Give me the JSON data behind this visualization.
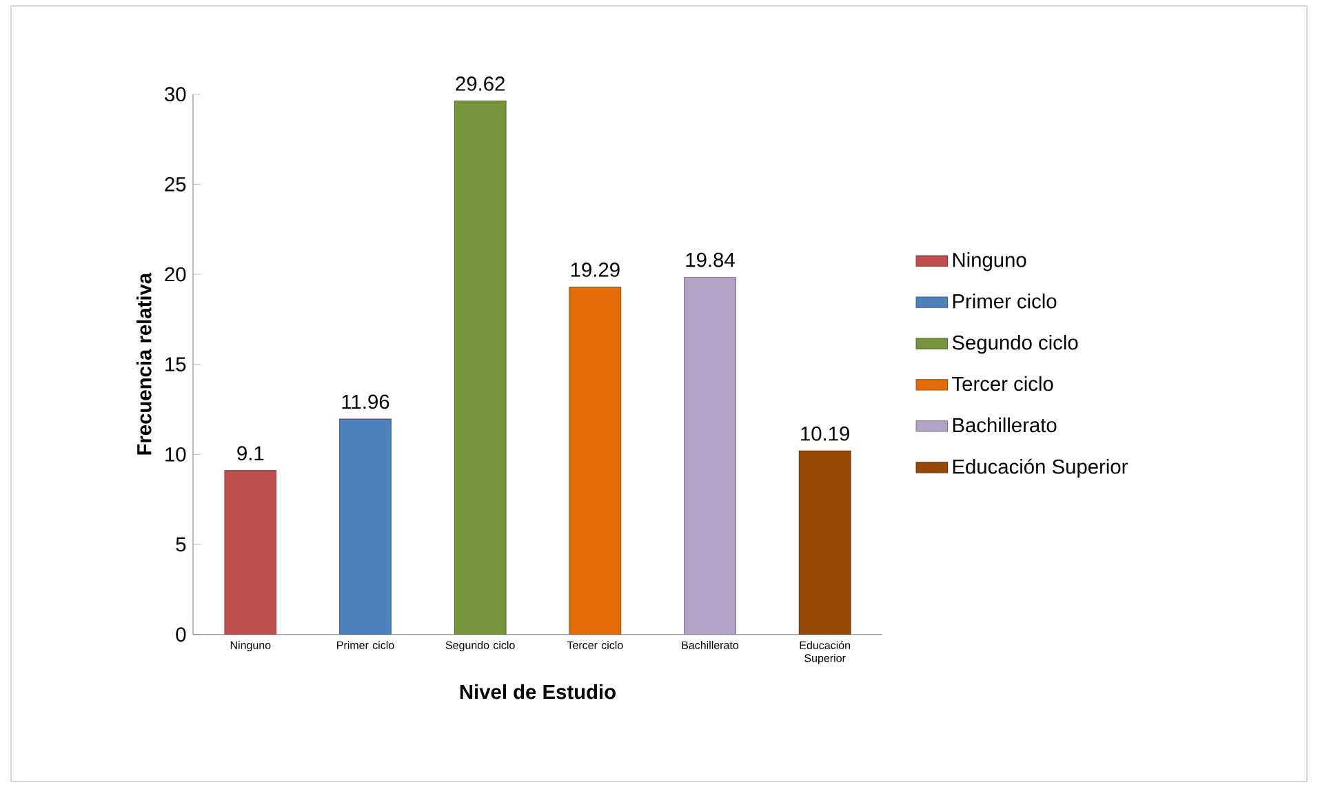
{
  "chart_data": {
    "type": "bar",
    "xlabel": "Nivel de Estudio",
    "ylabel": "Frecuencia relativa",
    "categories": [
      "Ninguno",
      "Primer ciclo",
      "Segundo ciclo",
      "Tercer ciclo",
      "Bachillerato",
      "Educación Superior"
    ],
    "series": [
      {
        "name": "Ninguno",
        "color": "#c0504d",
        "values": [
          9.1,
          null,
          null,
          null,
          null,
          null
        ]
      },
      {
        "name": "Primer ciclo",
        "color": "#4f81bd",
        "values": [
          null,
          11.96,
          null,
          null,
          null,
          null
        ]
      },
      {
        "name": "Segundo ciclo",
        "color": "#77933c",
        "values": [
          null,
          null,
          29.62,
          null,
          null,
          null
        ]
      },
      {
        "name": "Tercer ciclo",
        "color": "#e36c09",
        "values": [
          null,
          null,
          null,
          19.29,
          null,
          null
        ]
      },
      {
        "name": "Bachillerato",
        "color": "#b3a2c7",
        "values": [
          null,
          null,
          null,
          null,
          19.84,
          null
        ]
      },
      {
        "name": "Educación Superior",
        "color": "#984807",
        "values": [
          null,
          null,
          null,
          null,
          null,
          10.19
        ]
      }
    ],
    "ylim": [
      0,
      30
    ],
    "yticks": [
      0,
      5,
      10,
      15,
      20,
      25,
      30
    ],
    "data_labels": true,
    "legend": "right"
  }
}
